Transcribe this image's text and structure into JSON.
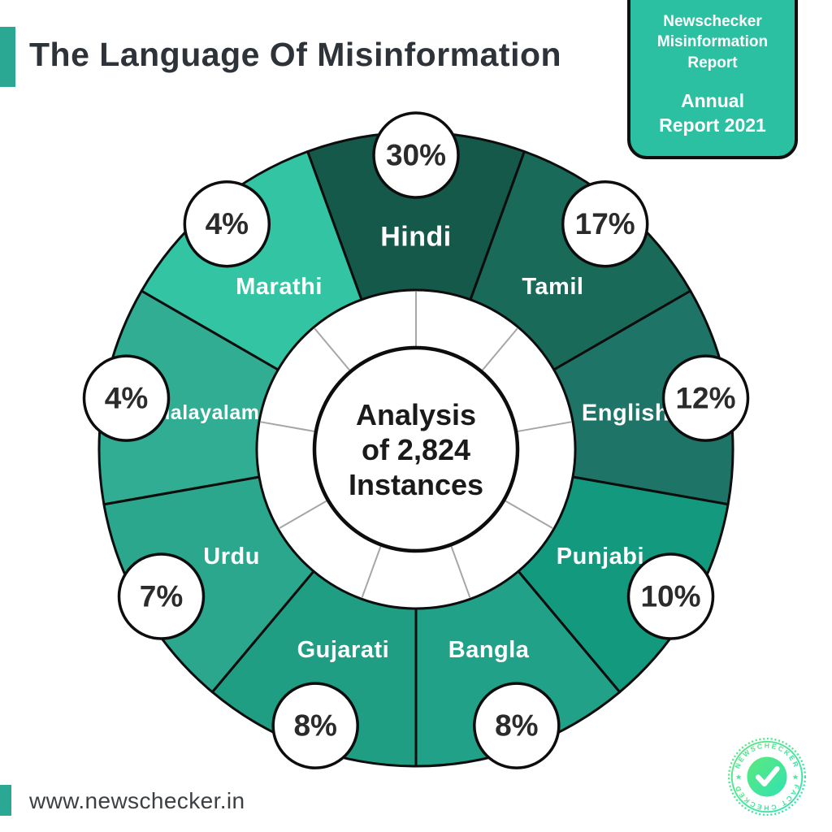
{
  "page": {
    "background": "#ffffff",
    "accent_color": "#2aa893"
  },
  "header": {
    "title": "The Language Of Misinformation"
  },
  "badge": {
    "bg_color": "#2cc0a2",
    "top_lines": [
      "Newschecker",
      "Misinformation",
      "Report"
    ],
    "bottom_lines": [
      "Annual",
      "Report 2021"
    ]
  },
  "footer": {
    "url": "www.newschecker.in"
  },
  "logo": {
    "top_text": "NEWSCHECKER",
    "bottom_text": "FACT CHECKED",
    "star": "★",
    "check_icon": "checkmark",
    "gradient_from": "#5ce87c",
    "gradient_to": "#31e3b2"
  },
  "chart_data": {
    "type": "pie",
    "variant": "donut-infographic",
    "title": "The Language Of Misinformation",
    "center_lines": [
      "Analysis",
      "of 2,824",
      "Instances"
    ],
    "total_instances": 2824,
    "equal_angle_slices": true,
    "start_angle_deg": -20,
    "percent_suffix": "%",
    "categories": [
      "Hindi",
      "Tamil",
      "English",
      "Punjabi",
      "Bangla",
      "Gujarati",
      "Urdu",
      "Malayalam",
      "Marathi"
    ],
    "values": [
      30,
      17,
      12,
      10,
      8,
      8,
      7,
      4,
      4
    ],
    "slices": [
      {
        "label": "Hindi",
        "value_pct": 30,
        "color": "#15594b"
      },
      {
        "label": "Tamil",
        "value_pct": 17,
        "color": "#1a6a5a"
      },
      {
        "label": "English",
        "value_pct": 12,
        "color": "#1e7567"
      },
      {
        "label": "Punjabi",
        "value_pct": 10,
        "color": "#12997e"
      },
      {
        "label": "Bangla",
        "value_pct": 8,
        "color": "#21a188"
      },
      {
        "label": "Gujarati",
        "value_pct": 8,
        "color": "#1f9e84"
      },
      {
        "label": "Urdu",
        "value_pct": 7,
        "color": "#2aa78d"
      },
      {
        "label": "Malayalam",
        "value_pct": 4,
        "color": "#30ad93"
      },
      {
        "label": "Marathi",
        "value_pct": 4,
        "color": "#33c5a3"
      }
    ],
    "style": {
      "outline_color": "#0d0d0d",
      "bubble_fill": "#ffffff",
      "bubble_text_color": "#2b2b2b",
      "label_color": "#ffffff",
      "spoke_color": "#a6a6a6",
      "center_text_color": "#1a1a1a"
    }
  }
}
